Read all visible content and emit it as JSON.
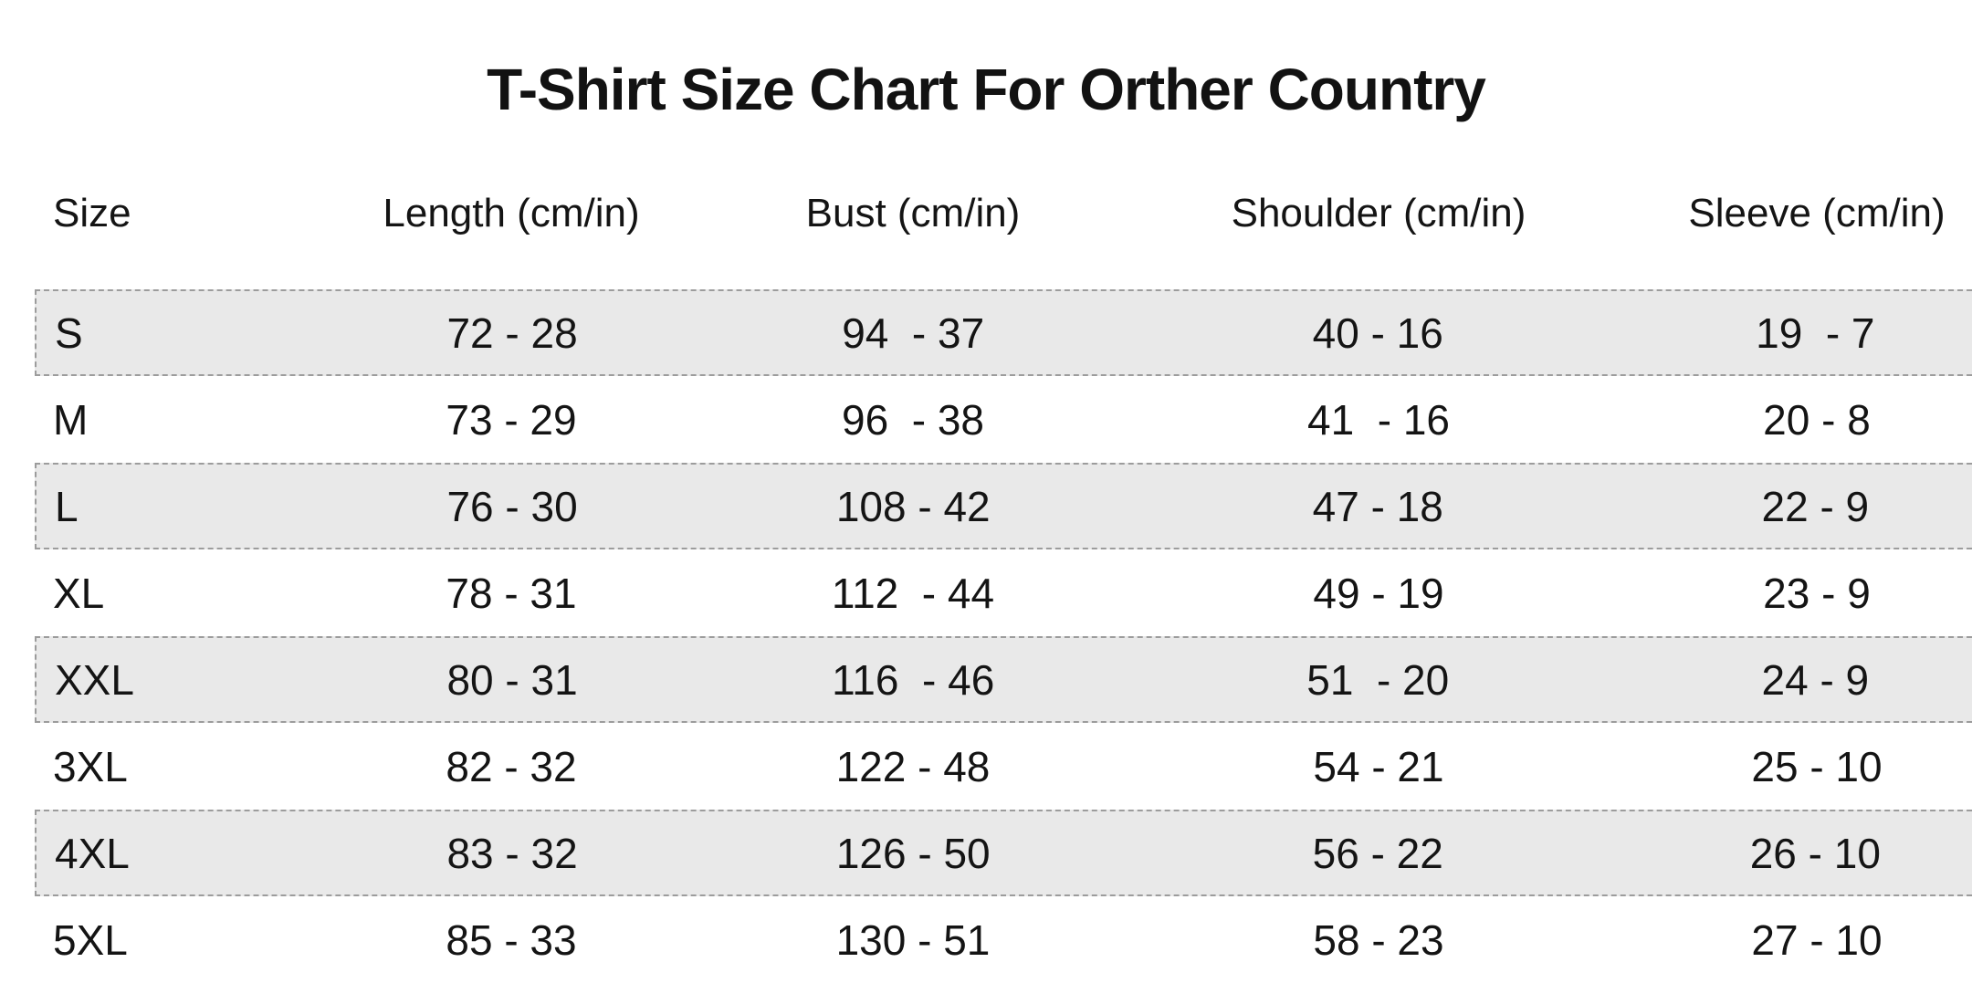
{
  "title": "T-Shirt Size Chart For Orther Country",
  "table": {
    "columns": [
      "Size",
      "Length (cm/in)",
      "Bust (cm/in)",
      "Shoulder (cm/in)",
      "Sleeve (cm/in)"
    ],
    "rows": [
      [
        "S",
        "72 - 28",
        "94  - 37",
        "40 - 16",
        "19  - 7"
      ],
      [
        "M",
        "73 - 29",
        "96  - 38",
        "41  - 16",
        "20 - 8"
      ],
      [
        "L",
        "76 - 30",
        "108 - 42",
        "47 - 18",
        "22 - 9"
      ],
      [
        "XL",
        "78 - 31",
        "112  - 44",
        "49 - 19",
        "23 - 9"
      ],
      [
        "XXL",
        "80 - 31",
        "116  - 46",
        "51  - 20",
        "24 - 9"
      ],
      [
        "3XL",
        "82 - 32",
        "122 - 48",
        "54 - 21",
        "25 - 10"
      ],
      [
        "4XL",
        "83 - 32",
        "126 - 50",
        "56 - 22",
        "26 - 10"
      ],
      [
        "5XL",
        "85 - 33",
        "130 - 51",
        "58 - 23",
        "27 - 10"
      ]
    ],
    "striped_row_indexes": [
      0,
      2,
      4,
      6
    ]
  },
  "chart_data": {
    "type": "table",
    "title": "T-Shirt Size Chart For Orther Country",
    "columns": [
      "Size",
      "Length (cm/in)",
      "Bust (cm/in)",
      "Shoulder (cm/in)",
      "Sleeve (cm/in)"
    ],
    "rows": [
      {
        "size": "S",
        "length_cm": 72,
        "length_in": 28,
        "bust_cm": 94,
        "bust_in": 37,
        "shoulder_cm": 40,
        "shoulder_in": 16,
        "sleeve_cm": 19,
        "sleeve_in": 7
      },
      {
        "size": "M",
        "length_cm": 73,
        "length_in": 29,
        "bust_cm": 96,
        "bust_in": 38,
        "shoulder_cm": 41,
        "shoulder_in": 16,
        "sleeve_cm": 20,
        "sleeve_in": 8
      },
      {
        "size": "L",
        "length_cm": 76,
        "length_in": 30,
        "bust_cm": 108,
        "bust_in": 42,
        "shoulder_cm": 47,
        "shoulder_in": 18,
        "sleeve_cm": 22,
        "sleeve_in": 9
      },
      {
        "size": "XL",
        "length_cm": 78,
        "length_in": 31,
        "bust_cm": 112,
        "bust_in": 44,
        "shoulder_cm": 49,
        "shoulder_in": 19,
        "sleeve_cm": 23,
        "sleeve_in": 9
      },
      {
        "size": "XXL",
        "length_cm": 80,
        "length_in": 31,
        "bust_cm": 116,
        "bust_in": 46,
        "shoulder_cm": 51,
        "shoulder_in": 20,
        "sleeve_cm": 24,
        "sleeve_in": 9
      },
      {
        "size": "3XL",
        "length_cm": 82,
        "length_in": 32,
        "bust_cm": 122,
        "bust_in": 48,
        "shoulder_cm": 54,
        "shoulder_in": 21,
        "sleeve_cm": 25,
        "sleeve_in": 10
      },
      {
        "size": "4XL",
        "length_cm": 83,
        "length_in": 32,
        "bust_cm": 126,
        "bust_in": 50,
        "shoulder_cm": 56,
        "shoulder_in": 22,
        "sleeve_cm": 26,
        "sleeve_in": 10
      },
      {
        "size": "5XL",
        "length_cm": 85,
        "length_in": 33,
        "bust_cm": 130,
        "bust_in": 51,
        "shoulder_cm": 58,
        "shoulder_in": 23,
        "sleeve_cm": 27,
        "sleeve_in": 10
      }
    ]
  },
  "colors": {
    "background": "#ffffff",
    "stripe": "#e9e9e9",
    "stripe_border": "#9c9c9c",
    "text": "#141414"
  }
}
